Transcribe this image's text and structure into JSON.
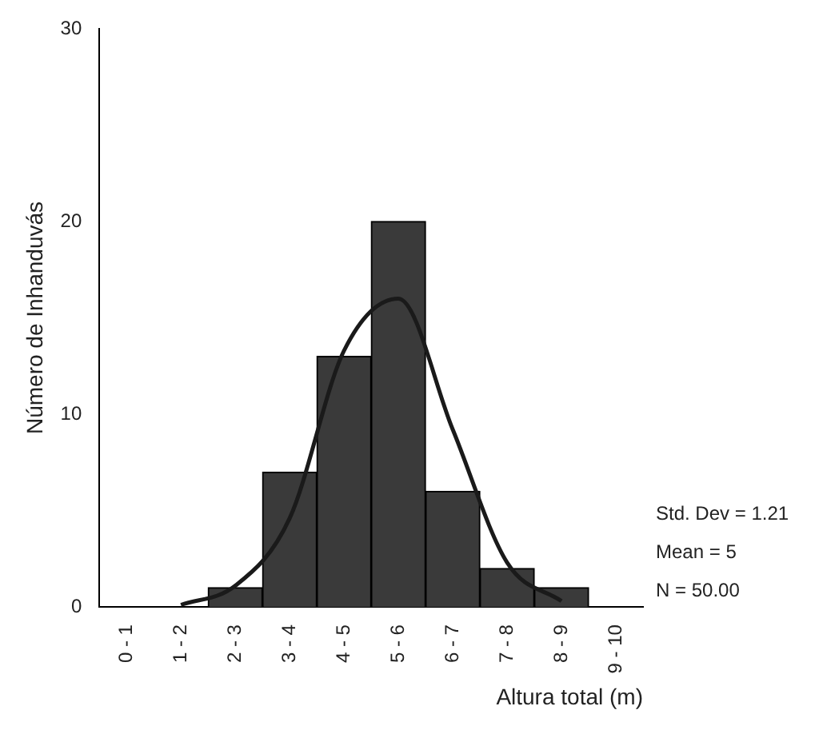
{
  "chart_data": {
    "type": "bar",
    "xlabel": "Altura total (m)",
    "ylabel": "Número de Inhanduvás",
    "categories": [
      "0 - 1",
      "1 - 2",
      "2 - 3",
      "3 - 4",
      "4 - 5",
      "5 - 6",
      "6 - 7",
      "7 - 8",
      "8 - 9",
      "9 - 10"
    ],
    "series": [
      {
        "color": "#3a3a3a",
        "values": [
          0,
          0,
          1,
          7,
          13,
          20,
          6,
          2,
          1,
          0
        ]
      },
      {
        "type": "line",
        "color": "#1a1a1a",
        "values": [
          null,
          0.1,
          1.1,
          4.6,
          13.3,
          16,
          9.2,
          2.3,
          0.3,
          null
        ]
      }
    ],
    "ylim": [
      0,
      30
    ],
    "yticks": [
      0,
      10,
      20,
      30
    ],
    "grid": false,
    "legend": false,
    "data_labels": false,
    "marker": "none",
    "line_style": "solid",
    "annotations": [
      "Std. Dev = 1.21",
      "Mean = 5",
      "N = 50.00"
    ]
  }
}
